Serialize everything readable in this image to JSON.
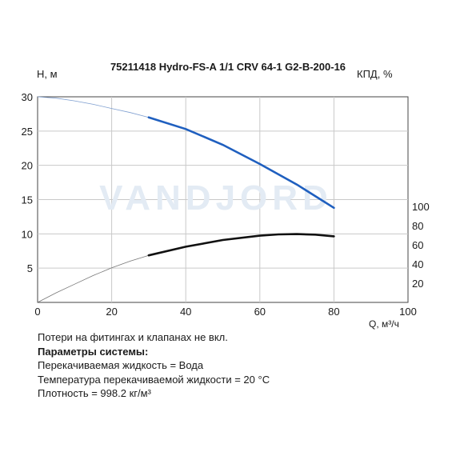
{
  "chart_data": {
    "type": "line",
    "title": "75211418 Hydro-FS-A 1/1 CRV 64-1 G2-B-200-16",
    "ylabel_left": "H, м",
    "ylabel_right": "КПД, %",
    "xlabel": "Q, м³/ч",
    "xlim": [
      0,
      100
    ],
    "ylim_left": [
      0,
      30
    ],
    "ylim_right": [
      0,
      100
    ],
    "x_ticks": [
      "0",
      "20",
      "40",
      "60",
      "80",
      "100"
    ],
    "y_left_ticks": [
      "5",
      "10",
      "15",
      "20",
      "25",
      "30"
    ],
    "y_right_ticks": [
      "20",
      "40",
      "60",
      "80",
      "100"
    ],
    "watermark": "VANDJORD",
    "series": [
      {
        "axis": "left",
        "color": "#1f5fbf",
        "extrapolated": {
          "x": [
            0,
            5,
            10,
            15,
            20,
            25,
            30
          ],
          "y": [
            30.0,
            29.8,
            29.4,
            28.9,
            28.3,
            27.7,
            27.0
          ]
        },
        "operating": {
          "x": [
            30,
            40,
            50,
            60,
            70,
            80
          ],
          "y": [
            27.0,
            25.3,
            23.0,
            20.2,
            17.2,
            13.8
          ]
        }
      },
      {
        "axis": "right",
        "color": "#111111",
        "extrapolated": {
          "x": [
            0,
            5,
            10,
            15,
            20,
            25,
            30
          ],
          "y": [
            0,
            10,
            19,
            28,
            36,
            43,
            49
          ]
        },
        "operating": {
          "x": [
            30,
            40,
            50,
            60,
            65,
            70,
            75,
            80
          ],
          "y": [
            49,
            58,
            65,
            69.5,
            70.8,
            71.2,
            70.6,
            68.8
          ]
        }
      }
    ]
  },
  "notes": {
    "line1": "Потери на фитингах и клапанах не вкл.",
    "heading": "Параметры системы:",
    "line2": "Перекачиваемая жидкость = Вода",
    "line3": "Температура перекачиваемой жидкости = 20 °C",
    "line4": "Плотность = 998.2 кг/м³"
  }
}
